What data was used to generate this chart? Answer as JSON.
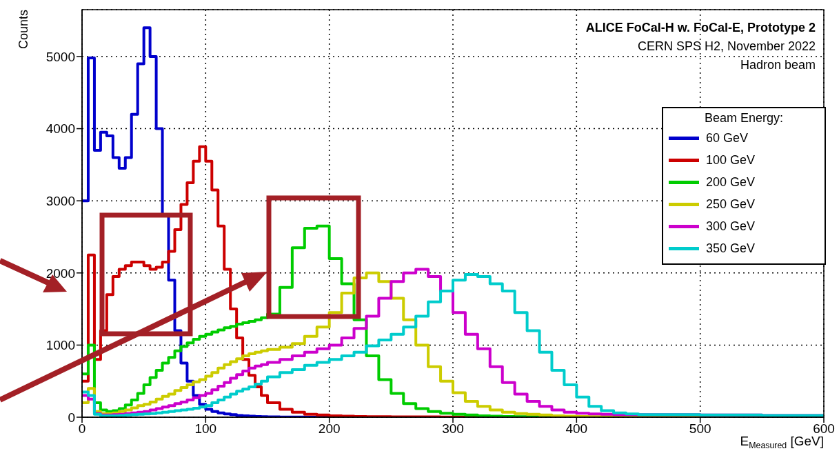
{
  "chart_data": {
    "type": "histogram",
    "ylabel": "Counts",
    "xlabel": "E$_{Measured}$ [GeV]",
    "annotations": [
      "ALICE FoCal-H w. FoCal-E, Prototype 2",
      "CERN SPS H2, November 2022",
      "Hadron beam"
    ],
    "legend_title": "Beam Energy:",
    "legend": "right",
    "grid": true,
    "xlim": [
      0,
      600
    ],
    "xticks": [
      0,
      100,
      200,
      300,
      400,
      500,
      600
    ],
    "ylim": [
      0,
      5650
    ],
    "yticks": [
      0,
      1000,
      2000,
      3000,
      4000,
      5000
    ],
    "bins": [
      0,
      5,
      10,
      15,
      20,
      25,
      30,
      35,
      40,
      45,
      50,
      55,
      60,
      65,
      70,
      75,
      80,
      85,
      90,
      95,
      100,
      105,
      110,
      115,
      120,
      125,
      130,
      135,
      140,
      145,
      150,
      160,
      170,
      180,
      190,
      200,
      210,
      220,
      230,
      240,
      250,
      260,
      270,
      280,
      290,
      300,
      310,
      320,
      330,
      340,
      350,
      360,
      370,
      380,
      390,
      400,
      410,
      420,
      430,
      440,
      450,
      500,
      550,
      600
    ],
    "series": [
      {
        "name": "60 GeV",
        "color": "#0000cc",
        "values": [
          3000,
          4980,
          3700,
          3950,
          3900,
          3600,
          3450,
          3600,
          4200,
          4900,
          5400,
          5000,
          4000,
          2800,
          1900,
          1200,
          750,
          500,
          300,
          180,
          110,
          80,
          60,
          45,
          35,
          25,
          20,
          15,
          10,
          8,
          5,
          3,
          2,
          1,
          0,
          0,
          0,
          0,
          0,
          0,
          0,
          0,
          0,
          0,
          0,
          0,
          0,
          0,
          0,
          0,
          0,
          0,
          0,
          0,
          0,
          0,
          0,
          0,
          0,
          0,
          0,
          0,
          0
        ]
      },
      {
        "name": "100 GeV",
        "color": "#cc0000",
        "values": [
          500,
          2250,
          800,
          1200,
          1700,
          1950,
          2050,
          2100,
          2150,
          2150,
          2100,
          2050,
          2080,
          2150,
          2300,
          2600,
          2950,
          3250,
          3550,
          3750,
          3550,
          3150,
          2650,
          2050,
          1500,
          1100,
          800,
          580,
          420,
          300,
          200,
          110,
          70,
          40,
          30,
          20,
          15,
          10,
          8,
          6,
          5,
          5,
          4,
          4,
          3,
          3,
          3,
          2,
          2,
          2,
          2,
          2,
          1,
          1,
          1,
          1,
          1,
          1,
          1,
          1,
          1,
          0,
          0
        ]
      },
      {
        "name": "200 GeV",
        "color": "#00cc00",
        "values": [
          600,
          1000,
          200,
          100,
          80,
          90,
          120,
          170,
          240,
          330,
          450,
          550,
          650,
          750,
          830,
          920,
          980,
          1030,
          1080,
          1120,
          1150,
          1180,
          1210,
          1240,
          1260,
          1290,
          1310,
          1330,
          1350,
          1380,
          1430,
          1800,
          2350,
          2620,
          2650,
          2200,
          1850,
          1350,
          850,
          520,
          330,
          190,
          120,
          80,
          55,
          40,
          30,
          20,
          15,
          10,
          8,
          6,
          5,
          5,
          4,
          4,
          3,
          3,
          3,
          3,
          3,
          2,
          2
        ]
      },
      {
        "name": "250 GeV",
        "color": "#cccc00",
        "values": [
          200,
          400,
          80,
          50,
          50,
          60,
          80,
          100,
          130,
          160,
          180,
          210,
          250,
          290,
          320,
          370,
          410,
          450,
          490,
          520,
          570,
          620,
          680,
          730,
          770,
          810,
          850,
          880,
          900,
          920,
          940,
          970,
          1020,
          1120,
          1250,
          1450,
          1720,
          1930,
          2000,
          1880,
          1650,
          1350,
          1000,
          700,
          500,
          340,
          220,
          150,
          100,
          70,
          50,
          40,
          30,
          20,
          15,
          10,
          8,
          6,
          5,
          5,
          3,
          2,
          1
        ]
      },
      {
        "name": "300 GeV",
        "color": "#cc00cc",
        "values": [
          300,
          250,
          50,
          30,
          30,
          35,
          40,
          50,
          60,
          70,
          80,
          100,
          120,
          140,
          160,
          190,
          210,
          240,
          270,
          300,
          330,
          380,
          430,
          480,
          540,
          590,
          640,
          680,
          710,
          730,
          760,
          800,
          850,
          900,
          950,
          1000,
          1100,
          1230,
          1400,
          1650,
          1880,
          2000,
          2050,
          1950,
          1750,
          1450,
          1150,
          950,
          700,
          480,
          320,
          220,
          150,
          100,
          70,
          55,
          45,
          40,
          35,
          35,
          35,
          30,
          25
        ]
      },
      {
        "name": "350 GeV",
        "color": "#00cccc",
        "values": [
          350,
          300,
          40,
          20,
          20,
          20,
          25,
          30,
          35,
          40,
          45,
          50,
          60,
          70,
          80,
          90,
          100,
          110,
          125,
          140,
          160,
          200,
          240,
          280,
          320,
          360,
          390,
          420,
          460,
          500,
          560,
          620,
          660,
          720,
          760,
          800,
          850,
          900,
          990,
          1070,
          1150,
          1250,
          1400,
          1600,
          1750,
          1900,
          1980,
          1950,
          1850,
          1750,
          1450,
          1200,
          900,
          650,
          450,
          280,
          150,
          90,
          60,
          45,
          35,
          30,
          25
        ]
      }
    ]
  }
}
